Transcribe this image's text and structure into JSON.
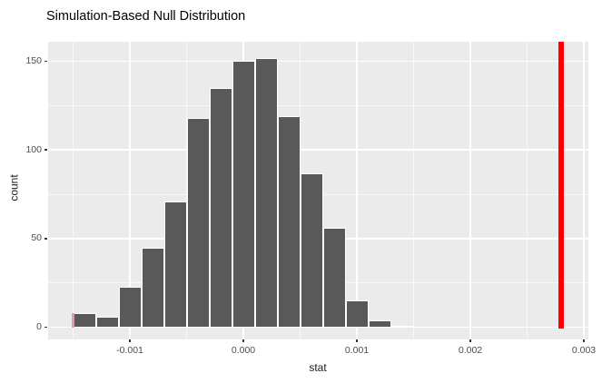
{
  "title": "Simulation-Based Null Distribution",
  "axes": {
    "x": {
      "label": "stat"
    },
    "y": {
      "label": "count"
    }
  },
  "chart_data": {
    "type": "bar",
    "subtype": "histogram",
    "title": "Simulation-Based Null Distribution",
    "xlabel": "stat",
    "ylabel": "count",
    "bin_width": 0.0002,
    "bin_centers": [
      -0.0014,
      -0.0012,
      -0.001,
      -0.0008,
      -0.0006,
      -0.0004,
      -0.0002,
      0.0,
      0.0002,
      0.0004,
      0.0006,
      0.0008,
      0.001,
      0.0012,
      0.0014
    ],
    "counts": [
      8,
      6,
      23,
      45,
      71,
      118,
      135,
      150,
      152,
      119,
      87,
      56,
      15,
      4,
      1
    ],
    "observed_stat": 0.0028,
    "artifact_marker_stat": -0.0015,
    "xlim": [
      -0.00172,
      0.00304
    ],
    "ylim": [
      -6.9,
      161
    ],
    "x_ticks": {
      "values": [
        -0.001,
        0.0,
        0.001,
        0.002,
        0.003
      ],
      "labels": [
        "-0.001",
        "0.000",
        "0.001",
        "0.002",
        "0.003"
      ],
      "minor": [
        -0.0015,
        -0.0005,
        0.0005,
        0.0015,
        0.0025
      ]
    },
    "y_ticks": {
      "values": [
        0,
        50,
        100,
        150
      ],
      "labels": [
        "0",
        "50",
        "100",
        "150"
      ],
      "minor": [
        25,
        75,
        125
      ]
    },
    "grid": "white major and minor gridlines on gray panel",
    "legend": "none",
    "colors": {
      "bar_fill": "#595959",
      "bar_border": "#FFFFFF",
      "panel_bg": "#EBEBEB",
      "observed_line": "#FF0000",
      "artifact_marker": "#E49CA2",
      "tick_text": "#4D4D4D",
      "tick_mark": "#333333",
      "title_text": "#000000"
    }
  }
}
